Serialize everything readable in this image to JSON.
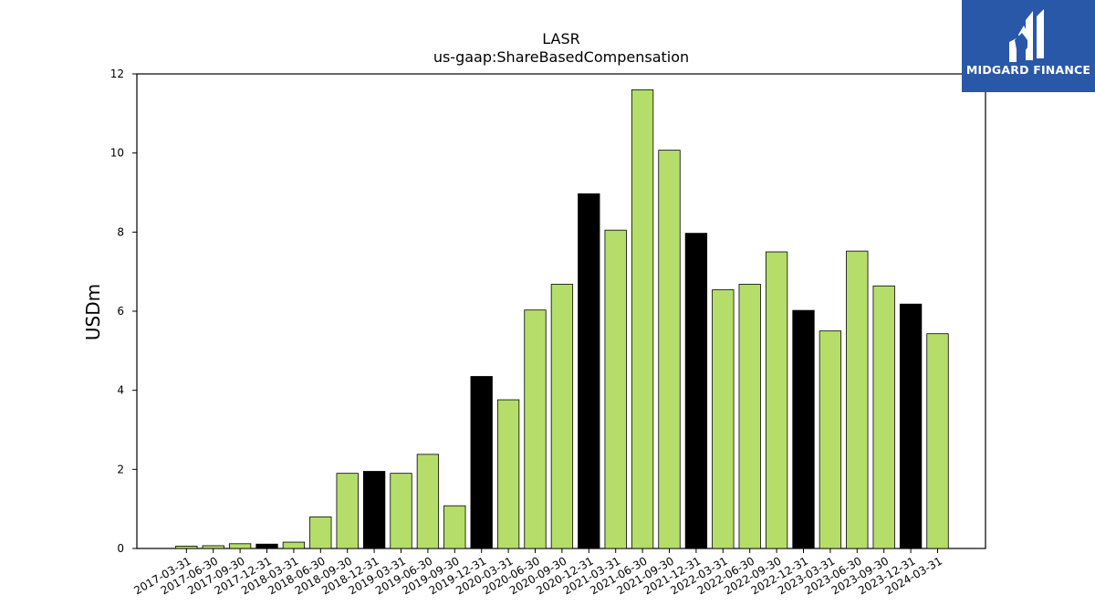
{
  "chart_data": {
    "type": "bar",
    "title": "LASR",
    "subtitle": "us-gaap:ShareBasedCompensation",
    "xlabel": "",
    "ylabel": "USDm",
    "ylim": [
      0,
      12
    ],
    "yticks": [
      0,
      2,
      4,
      6,
      8,
      10,
      12
    ],
    "grid": false,
    "colors": {
      "quarter": "#b5dd6a",
      "year_end": "#000000",
      "edge": "#000000"
    },
    "categories": [
      "2017-03-31",
      "2017-06-30",
      "2017-09-30",
      "2017-12-31",
      "2018-03-31",
      "2018-06-30",
      "2018-09-30",
      "2018-12-31",
      "2019-03-31",
      "2019-06-30",
      "2019-09-30",
      "2019-12-31",
      "2020-03-31",
      "2020-06-30",
      "2020-09-30",
      "2020-12-31",
      "2021-03-31",
      "2021-06-30",
      "2021-09-30",
      "2021-12-31",
      "2022-03-31",
      "2022-06-30",
      "2022-09-30",
      "2022-12-31",
      "2023-03-31",
      "2023-06-30",
      "2023-09-30",
      "2023-12-31",
      "2024-03-31"
    ],
    "values": [
      0.06,
      0.07,
      0.12,
      0.11,
      0.16,
      0.8,
      1.9,
      1.95,
      1.9,
      2.38,
      1.08,
      4.35,
      3.76,
      6.03,
      6.68,
      8.97,
      8.05,
      11.6,
      10.07,
      7.97,
      6.54,
      6.68,
      7.5,
      6.02,
      5.5,
      7.52,
      6.64,
      6.18,
      5.43
    ],
    "year_end_flags": [
      false,
      false,
      false,
      true,
      false,
      false,
      false,
      true,
      false,
      false,
      false,
      true,
      false,
      false,
      false,
      true,
      false,
      false,
      false,
      true,
      false,
      false,
      false,
      true,
      false,
      false,
      false,
      true,
      false
    ]
  },
  "logo": {
    "text": "MIDGARD FINANCE",
    "icon": "midgard-logo-icon"
  }
}
